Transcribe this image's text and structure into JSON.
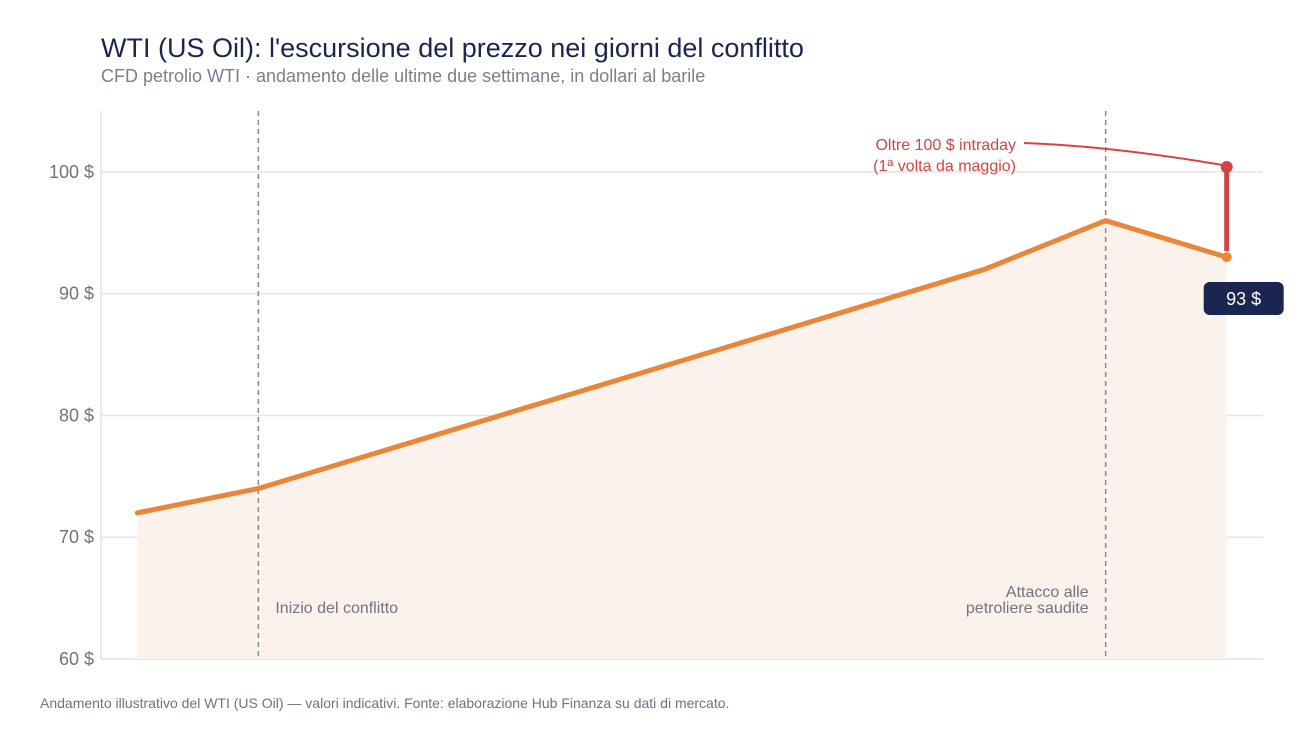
{
  "header": {
    "title": "WTI (US Oil): l'escursione del prezzo nei giorni del conflitto",
    "subtitle": "CFD petrolio WTI · andamento delle ultime due settimane, in dollari al barile"
  },
  "footer": {
    "note": "Andamento illustrativo del WTI (US Oil) — valori indicativi. Fonte: elaborazione Hub Finanza su dati di mercato."
  },
  "chart_data": {
    "type": "area",
    "x": [
      0,
      1,
      7,
      8,
      9
    ],
    "series": [
      {
        "values": [
          72,
          74,
          92,
          96,
          93
        ]
      }
    ],
    "ylim": [
      60,
      105
    ],
    "yticks": [
      {
        "value": 60,
        "label": "60 $"
      },
      {
        "value": 70,
        "label": "70 $"
      },
      {
        "value": 80,
        "label": "80 $"
      },
      {
        "value": 90,
        "label": "90 $"
      },
      {
        "value": 100,
        "label": "100 $"
      }
    ],
    "grid": true,
    "events": [
      {
        "x": 1,
        "label_lines": [
          "Inizio del conflitto"
        ]
      },
      {
        "x": 8,
        "label_lines": [
          "Attacco alle",
          "petroliere saudite"
        ]
      }
    ],
    "intraday_high": {
      "x": 9,
      "value": 100.4,
      "label_lines": [
        "Oltre 100 $ intraday",
        "(1ª volta da maggio)"
      ]
    },
    "last_value_label": "93 $",
    "colors": {
      "line": "#e8873a",
      "area": "#fcf2ec",
      "highlight": "#d24545",
      "badge": "#1b2650",
      "grid": "#e3e3e8",
      "event_line": "#8a8a8a"
    }
  }
}
